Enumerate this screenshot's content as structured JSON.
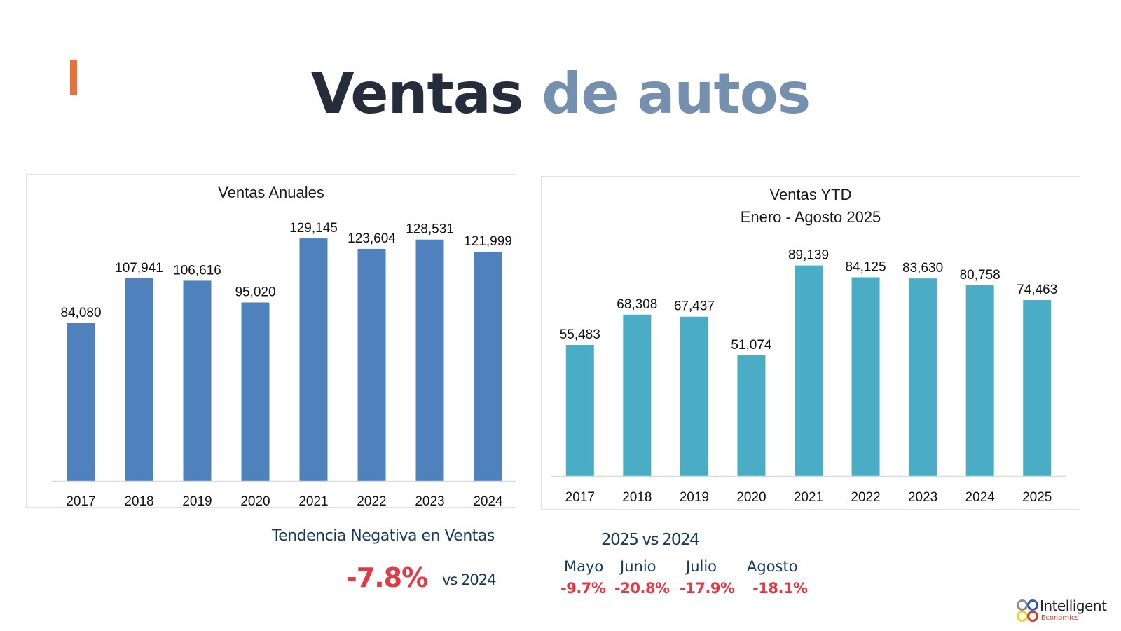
{
  "header": {
    "title_part1": "Ventas",
    "title_part2": "de autos",
    "accent_color": "#e8703a",
    "title_dark_color": "#262c3a",
    "title_light_color": "#7590af"
  },
  "chart_data": [
    {
      "type": "bar",
      "title": "Ventas Anuales",
      "categories": [
        "2017",
        "2018",
        "2019",
        "2020",
        "2021",
        "2022",
        "2023",
        "2024"
      ],
      "values": [
        84080,
        107941,
        106616,
        95020,
        129145,
        123604,
        128531,
        121999
      ],
      "labels": [
        "84,080",
        "107,941",
        "106,616",
        "95,020",
        "129,145",
        "123,604",
        "128,531",
        "121,999"
      ],
      "xlabel": "",
      "ylabel": "",
      "ylim": [
        0,
        140000
      ],
      "grid": false,
      "color": "#4f81bd"
    },
    {
      "type": "bar",
      "title": "Ventas YTD",
      "subtitle": "Enero - Agosto 2025",
      "categories": [
        "2017",
        "2018",
        "2019",
        "2020",
        "2021",
        "2022",
        "2023",
        "2024",
        "2025"
      ],
      "values": [
        55483,
        68308,
        67437,
        51074,
        89139,
        84125,
        83630,
        80758,
        74463
      ],
      "labels": [
        "55,483",
        "68,308",
        "67,437",
        "51,074",
        "89,139",
        "84,125",
        "83,630",
        "80,758",
        "74,463"
      ],
      "xlabel": "",
      "ylabel": "",
      "ylim": [
        0,
        100000
      ],
      "grid": false,
      "color": "#4bacc6"
    }
  ],
  "summary": {
    "trend_label": "Tendencia Negativa en Ventas",
    "trend_value": "-7.8%",
    "trend_compare": "vs 2024",
    "monthly_title": "2025 vs 2024",
    "months": [
      {
        "name": "Mayo",
        "value": "-9.7%"
      },
      {
        "name": "Junio",
        "value": "-20.8%"
      },
      {
        "name": "Julio",
        "value": "-17.9%"
      },
      {
        "name": "Agosto",
        "value": "-18.1%"
      }
    ],
    "negative_color": "#e03a45",
    "label_color": "#173a5c"
  },
  "logo": {
    "name": "Intelligent",
    "sub": "Economics"
  }
}
